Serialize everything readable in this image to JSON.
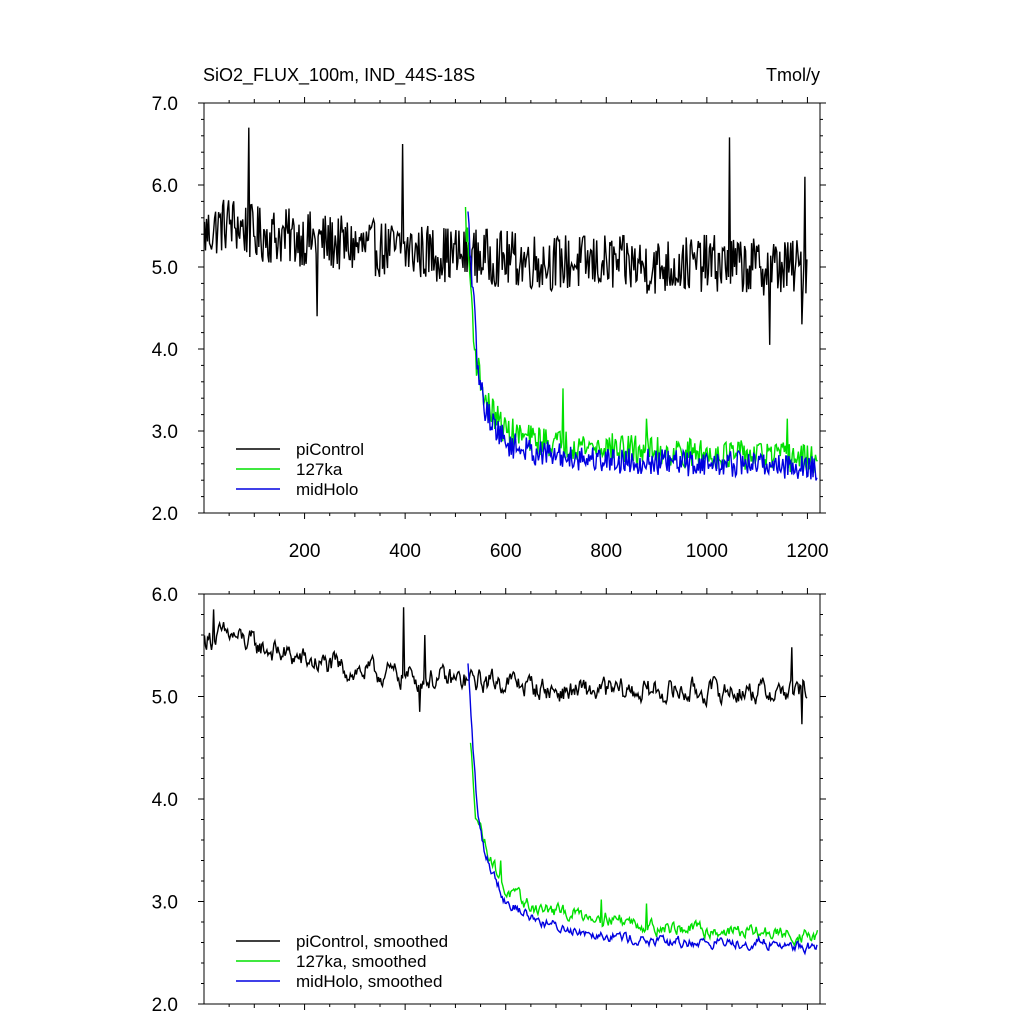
{
  "chart_data": [
    {
      "type": "line",
      "title": "SiO2_FLUX_100m, IND_44S-18S",
      "units": "Tmol/y",
      "xlim": [
        0,
        1225
      ],
      "ylim": [
        2.0,
        7.0
      ],
      "xticks": [
        200,
        400,
        600,
        800,
        1000,
        1200
      ],
      "xtick_labels": [
        "200",
        "400",
        "600",
        "800",
        "1000",
        "1200"
      ],
      "yticks": [
        2.0,
        3.0,
        4.0,
        5.0,
        6.0,
        7.0
      ],
      "ytick_labels": [
        "2.0",
        "3.0",
        "4.0",
        "5.0",
        "6.0",
        "7.0"
      ],
      "legend_position": "bottom-left",
      "series": [
        {
          "name": "piControl",
          "color": "#000000",
          "x_range": [
            1,
            1200
          ],
          "key_points": [
            [
              1,
              5.4
            ],
            [
              50,
              5.55
            ],
            [
              100,
              5.4
            ],
            [
              200,
              5.35
            ],
            [
              300,
              5.25
            ],
            [
              400,
              5.2
            ],
            [
              500,
              5.15
            ],
            [
              600,
              5.1
            ],
            [
              700,
              5.05
            ],
            [
              800,
              5.05
            ],
            [
              900,
              5.0
            ],
            [
              1000,
              5.05
            ],
            [
              1100,
              5.0
            ],
            [
              1200,
              5.0
            ]
          ],
          "noise_amplitude": 0.35,
          "peaks": [
            [
              90,
              6.7
            ],
            [
              395,
              6.5
            ],
            [
              1045,
              6.58
            ],
            [
              1195,
              6.1
            ]
          ],
          "troughs": [
            [
              225,
              4.4
            ],
            [
              1125,
              4.05
            ],
            [
              1190,
              4.3
            ]
          ]
        },
        {
          "name": "127ka",
          "color": "#00e000",
          "x_range": [
            520,
            1220
          ],
          "key_points": [
            [
              520,
              5.65
            ],
            [
              530,
              4.8
            ],
            [
              540,
              3.9
            ],
            [
              560,
              3.35
            ],
            [
              600,
              3.0
            ],
            [
              650,
              2.9
            ],
            [
              700,
              2.85
            ],
            [
              800,
              2.8
            ],
            [
              900,
              2.75
            ],
            [
              1000,
              2.72
            ],
            [
              1100,
              2.7
            ],
            [
              1220,
              2.65
            ]
          ],
          "noise_amplitude": 0.18,
          "peaks": [
            [
              715,
              3.52
            ],
            [
              880,
              3.15
            ],
            [
              1160,
              3.15
            ]
          ]
        },
        {
          "name": "midHolo",
          "color": "#0000e0",
          "x_range": [
            525,
            1220
          ],
          "key_points": [
            [
              525,
              5.6
            ],
            [
              535,
              4.7
            ],
            [
              545,
              3.7
            ],
            [
              560,
              3.25
            ],
            [
              600,
              2.85
            ],
            [
              650,
              2.75
            ],
            [
              700,
              2.7
            ],
            [
              800,
              2.65
            ],
            [
              900,
              2.62
            ],
            [
              1000,
              2.6
            ],
            [
              1100,
              2.6
            ],
            [
              1220,
              2.55
            ]
          ],
          "noise_amplitude": 0.16
        }
      ]
    },
    {
      "type": "line",
      "xlim": [
        0,
        1225
      ],
      "ylim": [
        2.0,
        6.0
      ],
      "yticks": [
        2.0,
        3.0,
        4.0,
        5.0,
        6.0
      ],
      "ytick_labels": [
        "2.0",
        "3.0",
        "4.0",
        "5.0",
        "6.0"
      ],
      "legend_position": "bottom-left",
      "series": [
        {
          "name": "piControl, smoothed",
          "color": "#000000",
          "x_range": [
            1,
            1200
          ],
          "key_points": [
            [
              1,
              5.55
            ],
            [
              50,
              5.6
            ],
            [
              100,
              5.5
            ],
            [
              200,
              5.35
            ],
            [
              300,
              5.25
            ],
            [
              400,
              5.2
            ],
            [
              500,
              5.15
            ],
            [
              600,
              5.15
            ],
            [
              700,
              5.05
            ],
            [
              800,
              5.05
            ],
            [
              900,
              5.05
            ],
            [
              1000,
              5.05
            ],
            [
              1100,
              5.05
            ],
            [
              1200,
              5.05
            ]
          ],
          "noise_amplitude": 0.15,
          "peaks": [
            [
              20,
              5.85
            ],
            [
              398,
              5.87
            ],
            [
              440,
              5.6
            ],
            [
              1170,
              5.48
            ]
          ],
          "troughs": [
            [
              430,
              4.85
            ],
            [
              1190,
              4.73
            ]
          ]
        },
        {
          "name": "127ka, smoothed",
          "color": "#00e000",
          "x_range": [
            530,
            1220
          ],
          "key_points": [
            [
              530,
              4.52
            ],
            [
              540,
              3.9
            ],
            [
              560,
              3.55
            ],
            [
              600,
              3.1
            ],
            [
              650,
              2.95
            ],
            [
              700,
              2.9
            ],
            [
              800,
              2.85
            ],
            [
              900,
              2.75
            ],
            [
              1000,
              2.72
            ],
            [
              1100,
              2.7
            ],
            [
              1220,
              2.65
            ]
          ],
          "noise_amplitude": 0.09,
          "peaks": [
            [
              590,
              3.4
            ],
            [
              790,
              3.02
            ],
            [
              880,
              2.98
            ]
          ]
        },
        {
          "name": "midHolo, smoothed",
          "color": "#0000e0",
          "x_range": [
            525,
            1220
          ],
          "key_points": [
            [
              525,
              5.3
            ],
            [
              535,
              4.5
            ],
            [
              545,
              3.8
            ],
            [
              560,
              3.45
            ],
            [
              600,
              3.0
            ],
            [
              650,
              2.85
            ],
            [
              700,
              2.75
            ],
            [
              800,
              2.68
            ],
            [
              900,
              2.6
            ],
            [
              1000,
              2.6
            ],
            [
              1100,
              2.6
            ],
            [
              1220,
              2.55
            ]
          ],
          "noise_amplitude": 0.07
        }
      ]
    }
  ]
}
